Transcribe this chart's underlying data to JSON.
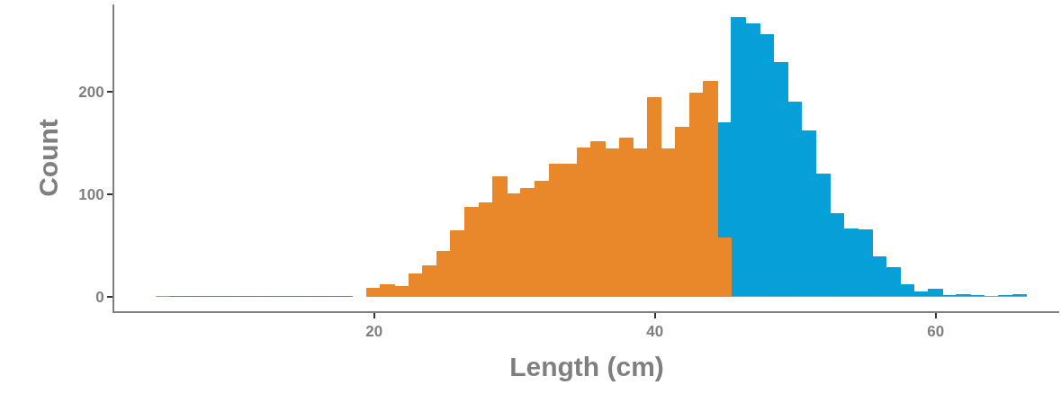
{
  "chart_data": {
    "type": "histogram",
    "xlabel": "Length (cm)",
    "ylabel": "Count",
    "bins": [
      4.5,
      5.5,
      6.5,
      7.5,
      8.5,
      9.5,
      10.5,
      11.5,
      12.5,
      13.5,
      14.5,
      15.5,
      16.5,
      17.5,
      18.5,
      19.5,
      20.5,
      21.5,
      22.5,
      23.5,
      24.5,
      25.5,
      26.5,
      27.5,
      28.5,
      29.5,
      30.5,
      31.5,
      32.5,
      33.5,
      34.5,
      35.5,
      36.5,
      37.5,
      38.5,
      39.5,
      40.5,
      41.5,
      42.5,
      43.5,
      44.5,
      45.5,
      46.5,
      47.5,
      48.5,
      49.5,
      50.5,
      51.5,
      52.5,
      53.5,
      54.5,
      55.5,
      56.5,
      57.5,
      58.5,
      59.5,
      60.5,
      61.5,
      62.5,
      63.5,
      64.5,
      65.5,
      66.5
    ],
    "series": [
      {
        "color": "#069fd8",
        "values": [
          null,
          0,
          0,
          0,
          0,
          0,
          0,
          0,
          0,
          0,
          0,
          0,
          0,
          0,
          null,
          null,
          null,
          null,
          null,
          null,
          null,
          null,
          null,
          null,
          null,
          null,
          null,
          null,
          null,
          null,
          null,
          null,
          null,
          null,
          null,
          null,
          null,
          null,
          null,
          null,
          169,
          272,
          266,
          255,
          228,
          189,
          161,
          119,
          81,
          66,
          65,
          39,
          28,
          11,
          4,
          7,
          1,
          2,
          1,
          null,
          1,
          2
        ]
      },
      {
        "color": "#e8882a",
        "values": [
          0,
          null,
          null,
          null,
          null,
          null,
          null,
          null,
          null,
          null,
          null,
          null,
          null,
          null,
          null,
          8,
          11,
          10,
          22,
          30,
          44,
          64,
          87,
          91,
          117,
          100,
          105,
          112,
          129,
          129,
          145,
          151,
          144,
          154,
          144,
          194,
          144,
          165,
          198,
          210,
          57,
          0,
          0,
          0,
          0,
          0,
          0,
          0,
          0,
          0,
          0,
          0,
          0,
          0,
          0,
          0,
          0,
          0,
          0,
          0,
          0,
          0
        ]
      }
    ],
    "xlim": [
      1.5,
      68.8
    ],
    "xticks": [
      20,
      40,
      60
    ],
    "ylim": [
      -14,
      285
    ],
    "yticks": [
      0,
      100,
      200
    ],
    "grid": false
  }
}
